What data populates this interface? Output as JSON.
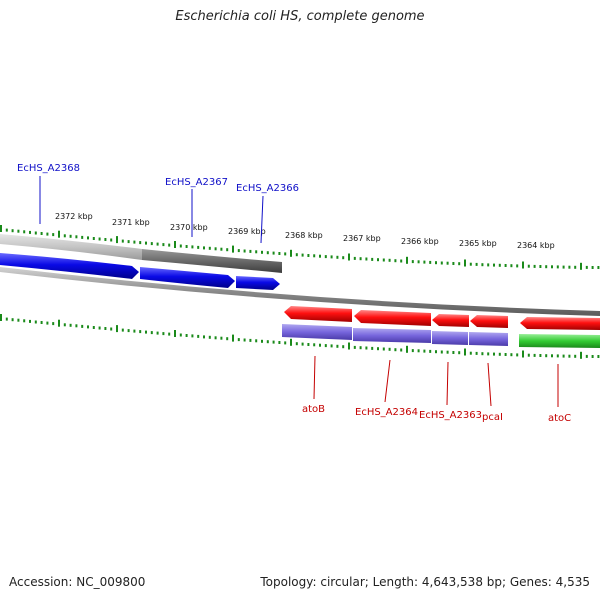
{
  "title": "Escherichia coli HS, complete genome",
  "footer": {
    "accession": "Accession: NC_009800",
    "summary": "Topology: circular; Length: 4,643,538 bp; Genes: 4,535"
  },
  "scale_labels": [
    "2372 kbp",
    "2371 kbp",
    "2370 kbp",
    "2369 kbp",
    "2368 kbp",
    "2367 kbp",
    "2366 kbp",
    "2365 kbp",
    "2364 kbp"
  ],
  "genes_top": [
    {
      "label": "EcHS_A2368",
      "color": "#1010c8"
    },
    {
      "label": "EcHS_A2367",
      "color": "#1010c8"
    },
    {
      "label": "EcHS_A2366",
      "color": "#1010c8"
    }
  ],
  "genes_bottom": [
    {
      "label": "atoB",
      "color": "#c40000"
    },
    {
      "label": "EcHS_A2364",
      "color": "#c40000"
    },
    {
      "label": "EcHS_A2363",
      "color": "#c40000"
    },
    {
      "label": "pcaI",
      "color": "#c40000"
    },
    {
      "label": "atoC",
      "color": "#c40000"
    }
  ],
  "colors": {
    "forward_gene": "#0a0ae6",
    "reverse_gene": "#ff1010",
    "cds_purple": "#7766dd",
    "cds_green": "#33cc33",
    "ruler_tick": "#1a8a1a",
    "backbone": "#888888"
  }
}
